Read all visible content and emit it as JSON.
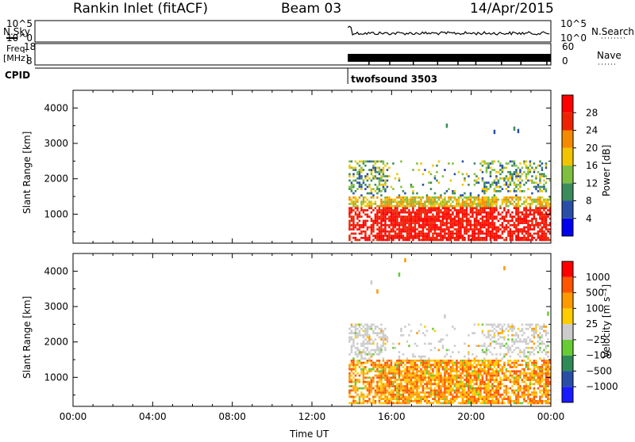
{
  "header": {
    "title": "Rankin Inlet (fitACF)",
    "beam": "Beam 03",
    "date": "14/Apr/2015"
  },
  "top_panels": {
    "nsky_label": "N.Sky",
    "nsky_ticks": [
      "10^5",
      "10^0"
    ],
    "nsearch_label": "N.Search",
    "nsearch_ticks": [
      "10^5",
      "10^0"
    ],
    "freq_label_1": "Freq.",
    "freq_label_2": "[MHz]",
    "freq_ticks": [
      "18",
      "8"
    ],
    "nave_label": "Nave",
    "nave_ticks": [
      "60",
      "0"
    ],
    "cpid_label": "CPID",
    "cpid_value": "twofsound 3503"
  },
  "colors": {
    "power": [
      "#0000ee",
      "#2a4ea8",
      "#3b8c5a",
      "#7fbf3f",
      "#f2c400",
      "#f58a00",
      "#ee2200",
      "#ff0000"
    ],
    "velocity": [
      "#ff0000",
      "#ff5500",
      "#ff9900",
      "#ffcc00",
      "#cccccc",
      "#66cc33",
      "#2e8b57",
      "#2a4ea8",
      "#1a1aff"
    ]
  },
  "chart_data": [
    {
      "type": "heatmap",
      "quantity": "Power",
      "ylabel": "Slant Range [km]",
      "ylim": [
        180,
        4500
      ],
      "yticks": [
        "1000",
        "2000",
        "3000",
        "4000"
      ],
      "xlabel": "",
      "xlim_hours": [
        0,
        24
      ],
      "colorbar_label": "Power [dB]",
      "colorbar_ticks": [
        "4",
        "8",
        "12",
        "16",
        "20",
        "24",
        "28"
      ],
      "data_start_hour": 13.8
    },
    {
      "type": "heatmap",
      "quantity": "Velocity",
      "ylabel": "Slant Range [km]",
      "ylim": [
        180,
        4500
      ],
      "yticks": [
        "1000",
        "2000",
        "3000",
        "4000"
      ],
      "xlabel": "Time UT",
      "xticks": [
        "00:00",
        "04:00",
        "08:00",
        "12:00",
        "16:00",
        "20:00",
        "00:00"
      ],
      "xlim_hours": [
        0,
        24
      ],
      "colorbar_label": "Velocity [m s⁻¹]",
      "colorbar_ticks": [
        "1000",
        "500",
        "100",
        "25",
        "−25",
        "−100",
        "−500",
        "−1000"
      ],
      "data_start_hour": 13.8
    }
  ]
}
